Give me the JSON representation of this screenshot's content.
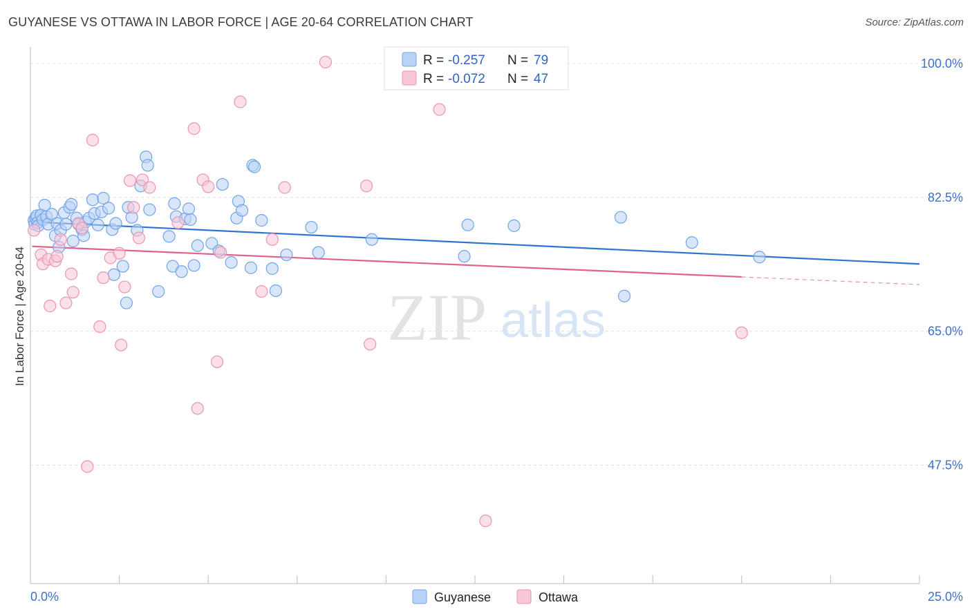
{
  "title": "GUYANESE VS OTTAWA IN LABOR FORCE | AGE 20-64 CORRELATION CHART",
  "source": "Source: ZipAtlas.com",
  "watermark": {
    "zip": "ZIP",
    "atlas": "atlas"
  },
  "chart_data": {
    "type": "scatter",
    "title": "GUYANESE VS OTTAWA IN LABOR FORCE | AGE 20-64 CORRELATION CHART",
    "xlabel": "",
    "ylabel": "In Labor Force | Age 20-64",
    "xlim": [
      0,
      25
    ],
    "ylim": [
      32,
      102
    ],
    "x_tick_labels": [
      "0.0%",
      "25.0%"
    ],
    "y_ticks": [
      47.5,
      65.0,
      82.5,
      100.0
    ],
    "y_tick_labels": [
      "47.5%",
      "65.0%",
      "82.5%",
      "100.0%"
    ],
    "grid": true,
    "legend": {
      "position": "top-center",
      "entries": [
        {
          "r_label": "R =",
          "r_value": "-0.257",
          "n_label": "N =",
          "n_value": "79"
        },
        {
          "r_label": "R =",
          "r_value": "-0.072",
          "n_label": "N =",
          "n_value": "47"
        }
      ]
    },
    "series": [
      {
        "name": "Guyanese",
        "color": "#6fa4e6",
        "fill": "#b9d2f5",
        "trend_color": "#2f74d0",
        "trend": {
          "x0": 0.05,
          "y0": 79.3,
          "x1": 25.0,
          "y1": 73.8
        },
        "points": [
          [
            0.1,
            79.5
          ],
          [
            0.12,
            79.0
          ],
          [
            0.15,
            79.8
          ],
          [
            0.18,
            80.1
          ],
          [
            0.2,
            79.2
          ],
          [
            0.22,
            78.8
          ],
          [
            0.3,
            80.2
          ],
          [
            0.35,
            79.6
          ],
          [
            0.4,
            81.5
          ],
          [
            0.45,
            80.0
          ],
          [
            0.5,
            79.0
          ],
          [
            0.6,
            80.3
          ],
          [
            0.7,
            77.5
          ],
          [
            0.75,
            79.1
          ],
          [
            0.8,
            76.0
          ],
          [
            0.85,
            78.2
          ],
          [
            0.95,
            80.5
          ],
          [
            1.0,
            79.0
          ],
          [
            1.1,
            81.2
          ],
          [
            1.15,
            81.6
          ],
          [
            1.2,
            76.8
          ],
          [
            1.3,
            79.8
          ],
          [
            1.35,
            79.0
          ],
          [
            1.45,
            78.3
          ],
          [
            1.5,
            77.5
          ],
          [
            1.55,
            79.3
          ],
          [
            1.65,
            79.8
          ],
          [
            1.75,
            82.2
          ],
          [
            1.8,
            80.4
          ],
          [
            1.9,
            78.9
          ],
          [
            2.0,
            80.6
          ],
          [
            2.05,
            82.4
          ],
          [
            2.2,
            81.1
          ],
          [
            2.3,
            78.3
          ],
          [
            2.35,
            72.4
          ],
          [
            2.4,
            79.1
          ],
          [
            2.6,
            73.5
          ],
          [
            2.7,
            68.7
          ],
          [
            2.75,
            81.2
          ],
          [
            2.85,
            79.9
          ],
          [
            3.0,
            78.2
          ],
          [
            3.1,
            84.0
          ],
          [
            3.25,
            87.8
          ],
          [
            3.3,
            86.7
          ],
          [
            3.35,
            80.9
          ],
          [
            3.6,
            70.2
          ],
          [
            3.9,
            77.4
          ],
          [
            4.0,
            73.5
          ],
          [
            4.05,
            81.7
          ],
          [
            4.1,
            80.0
          ],
          [
            4.25,
            72.8
          ],
          [
            4.35,
            79.7
          ],
          [
            4.45,
            81.0
          ],
          [
            4.5,
            79.6
          ],
          [
            4.6,
            73.6
          ],
          [
            4.7,
            76.2
          ],
          [
            5.1,
            76.5
          ],
          [
            5.3,
            75.5
          ],
          [
            5.4,
            84.2
          ],
          [
            5.65,
            74.0
          ],
          [
            5.8,
            79.8
          ],
          [
            5.85,
            82.0
          ],
          [
            5.95,
            80.8
          ],
          [
            6.2,
            73.3
          ],
          [
            6.25,
            86.7
          ],
          [
            6.3,
            86.5
          ],
          [
            6.5,
            79.5
          ],
          [
            6.8,
            73.2
          ],
          [
            6.9,
            70.3
          ],
          [
            7.2,
            75.0
          ],
          [
            7.9,
            78.6
          ],
          [
            8.1,
            75.3
          ],
          [
            9.6,
            77.0
          ],
          [
            12.2,
            74.8
          ],
          [
            12.3,
            78.9
          ],
          [
            13.6,
            78.8
          ],
          [
            16.6,
            79.9
          ],
          [
            16.7,
            69.6
          ],
          [
            18.6,
            76.6
          ],
          [
            20.5,
            74.7
          ]
        ]
      },
      {
        "name": "Ottawa",
        "color": "#eb93b2",
        "fill": "#f8c7d7",
        "trend_color": "#e0608e",
        "trend": {
          "x0": 0.05,
          "y0": 76.1,
          "x1": 20.0,
          "y1": 72.1
        },
        "trend_dashed_to": {
          "x": 25.0,
          "y": 71.1
        },
        "points": [
          [
            0.1,
            78.2
          ],
          [
            0.3,
            75.0
          ],
          [
            0.35,
            73.8
          ],
          [
            0.5,
            74.4
          ],
          [
            0.55,
            68.3
          ],
          [
            0.7,
            74.2
          ],
          [
            0.75,
            74.8
          ],
          [
            0.85,
            77.0
          ],
          [
            1.0,
            68.7
          ],
          [
            1.15,
            72.5
          ],
          [
            1.2,
            70.1
          ],
          [
            1.35,
            79.1
          ],
          [
            1.45,
            78.5
          ],
          [
            1.6,
            47.3
          ],
          [
            1.75,
            90.0
          ],
          [
            1.95,
            65.6
          ],
          [
            2.05,
            72.0
          ],
          [
            2.25,
            74.6
          ],
          [
            2.5,
            75.2
          ],
          [
            2.55,
            63.2
          ],
          [
            2.65,
            70.8
          ],
          [
            2.8,
            84.7
          ],
          [
            2.9,
            81.2
          ],
          [
            3.05,
            77.2
          ],
          [
            3.15,
            84.8
          ],
          [
            3.35,
            83.8
          ],
          [
            4.15,
            79.2
          ],
          [
            4.6,
            91.5
          ],
          [
            4.7,
            54.9
          ],
          [
            4.85,
            84.8
          ],
          [
            5.0,
            83.9
          ],
          [
            5.25,
            61.0
          ],
          [
            5.35,
            75.3
          ],
          [
            5.9,
            95.0
          ],
          [
            6.5,
            70.2
          ],
          [
            6.8,
            77.0
          ],
          [
            7.15,
            83.8
          ],
          [
            8.3,
            100.2
          ],
          [
            9.45,
            84.0
          ],
          [
            9.55,
            63.3
          ],
          [
            11.5,
            94.0
          ],
          [
            12.8,
            40.2
          ],
          [
            20.0,
            64.8
          ]
        ]
      }
    ]
  },
  "bottom_legend": [
    "Guyanese",
    "Ottawa"
  ]
}
